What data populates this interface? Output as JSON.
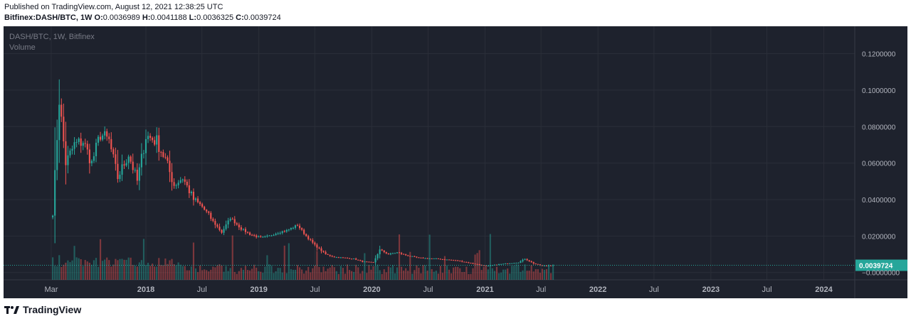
{
  "header": {
    "published": "Published on TradingView.com, August 12, 2021 12:38:25 UTC",
    "symbol": "Bitfinex:DASH/BTC, 1W",
    "o_label": "O:",
    "o_value": "0.0036989",
    "h_label": "H:",
    "h_value": "0.0041188",
    "l_label": "L:",
    "l_value": "0.0036325",
    "c_label": "C:",
    "c_value": "0.0039724"
  },
  "legend": {
    "series": "DASH/BTC, 1W, Bitfinex",
    "volume": "Volume"
  },
  "footer": {
    "brand": "TradingView"
  },
  "colors": {
    "background": "#1e222d",
    "grid": "#2a2e39",
    "up": "#26a69a",
    "down": "#ef5350",
    "axis_text": "#b2b5be",
    "price_line": "#26a69a"
  },
  "chart_data": {
    "type": "candlestick",
    "symbol": "DASH/BTC",
    "interval": "1W",
    "exchange": "Bitfinex",
    "last_price": 0.0039724,
    "last_price_label": "0.0039724",
    "y_ticks": [
      "0.1200000",
      "0.1000000",
      "0.0800000",
      "0.0600000",
      "0.0400000",
      "0.0200000",
      "−0.0000000"
    ],
    "y_tick_values": [
      0.12,
      0.1,
      0.08,
      0.06,
      0.04,
      0.02,
      0.0
    ],
    "ylim": [
      -0.004,
      0.135
    ],
    "x_ticks": [
      "Mar",
      "2018",
      "Jul",
      "2019",
      "Jul",
      "2020",
      "Jul",
      "2021",
      "Jul",
      "2022",
      "Jul",
      "2023",
      "Jul",
      "2024"
    ],
    "x_tick_dates": [
      "2017-03-01",
      "2018-01-01",
      "2018-07-01",
      "2019-01-01",
      "2019-07-01",
      "2020-01-01",
      "2020-07-01",
      "2021-01-01",
      "2021-07-01",
      "2022-01-01",
      "2022-07-01",
      "2023-01-01",
      "2023-07-01",
      "2024-01-01"
    ],
    "xlim": [
      "2016-09-28",
      "2024-04-10"
    ],
    "series_start": "2017-03-06",
    "series_end": "2021-08-09",
    "anchors": [
      {
        "date": "2017-03-06",
        "close": 0.033
      },
      {
        "date": "2017-03-27",
        "close": 0.095
      },
      {
        "date": "2017-04-17",
        "close": 0.06
      },
      {
        "date": "2017-05-15",
        "close": 0.07
      },
      {
        "date": "2017-06-12",
        "close": 0.072
      },
      {
        "date": "2017-07-10",
        "close": 0.06
      },
      {
        "date": "2017-08-07",
        "close": 0.076
      },
      {
        "date": "2017-09-04",
        "close": 0.072
      },
      {
        "date": "2017-10-02",
        "close": 0.052
      },
      {
        "date": "2017-11-06",
        "close": 0.065
      },
      {
        "date": "2017-12-04",
        "close": 0.05
      },
      {
        "date": "2018-01-01",
        "close": 0.075
      },
      {
        "date": "2018-02-05",
        "close": 0.072
      },
      {
        "date": "2018-03-05",
        "close": 0.062
      },
      {
        "date": "2018-04-02",
        "close": 0.048
      },
      {
        "date": "2018-04-30",
        "close": 0.052
      },
      {
        "date": "2018-06-04",
        "close": 0.04
      },
      {
        "date": "2018-07-02",
        "close": 0.036
      },
      {
        "date": "2018-08-06",
        "close": 0.028
      },
      {
        "date": "2018-09-03",
        "close": 0.022
      },
      {
        "date": "2018-10-01",
        "close": 0.03
      },
      {
        "date": "2018-11-05",
        "close": 0.024
      },
      {
        "date": "2018-12-03",
        "close": 0.021
      },
      {
        "date": "2019-01-07",
        "close": 0.019
      },
      {
        "date": "2019-02-04",
        "close": 0.02
      },
      {
        "date": "2019-03-04",
        "close": 0.022
      },
      {
        "date": "2019-04-01",
        "close": 0.023
      },
      {
        "date": "2019-05-06",
        "close": 0.026
      },
      {
        "date": "2019-06-03",
        "close": 0.02
      },
      {
        "date": "2019-07-01",
        "close": 0.015
      },
      {
        "date": "2019-08-05",
        "close": 0.01
      },
      {
        "date": "2019-09-02",
        "close": 0.0085
      },
      {
        "date": "2019-10-07",
        "close": 0.008
      },
      {
        "date": "2019-11-04",
        "close": 0.0075
      },
      {
        "date": "2019-12-02",
        "close": 0.006
      },
      {
        "date": "2020-01-06",
        "close": 0.0055
      },
      {
        "date": "2020-01-27",
        "close": 0.0125
      },
      {
        "date": "2020-02-24",
        "close": 0.01
      },
      {
        "date": "2020-03-23",
        "close": 0.011
      },
      {
        "date": "2020-04-20",
        "close": 0.0095
      },
      {
        "date": "2020-06-01",
        "close": 0.008
      },
      {
        "date": "2020-08-03",
        "close": 0.0075
      },
      {
        "date": "2020-10-05",
        "close": 0.0065
      },
      {
        "date": "2020-12-07",
        "close": 0.0045
      },
      {
        "date": "2021-01-04",
        "close": 0.0035
      },
      {
        "date": "2021-02-15",
        "close": 0.0045
      },
      {
        "date": "2021-03-15",
        "close": 0.005
      },
      {
        "date": "2021-04-19",
        "close": 0.0055
      },
      {
        "date": "2021-05-10",
        "close": 0.0075
      },
      {
        "date": "2021-06-07",
        "close": 0.005
      },
      {
        "date": "2021-07-05",
        "close": 0.0037
      },
      {
        "date": "2021-08-09",
        "close": 0.0039724
      }
    ],
    "grid": true
  }
}
